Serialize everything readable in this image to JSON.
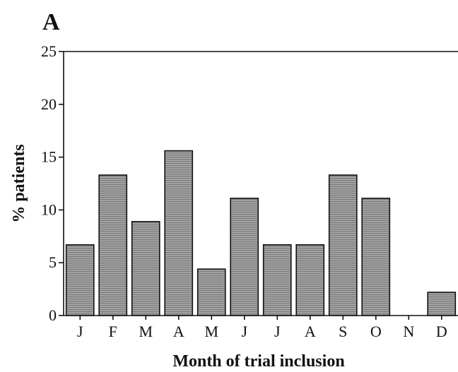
{
  "chart_data": {
    "type": "bar",
    "panel_label": "A",
    "title": "",
    "xlabel": "Month of trial inclusion",
    "ylabel": "% patients",
    "categories": [
      "J",
      "F",
      "M",
      "A",
      "M",
      "J",
      "J",
      "A",
      "S",
      "O",
      "N",
      "D"
    ],
    "values": [
      6.7,
      13.3,
      8.9,
      15.6,
      4.4,
      11.1,
      6.7,
      6.7,
      13.3,
      11.1,
      0,
      2.2
    ],
    "ylim": [
      0,
      25
    ],
    "yticks": [
      "0",
      "5",
      "10",
      "15",
      "20",
      "25"
    ],
    "grid": false,
    "legend": "none",
    "bar_color": "#9a9a9a",
    "bar_edge_color": "#111111"
  }
}
